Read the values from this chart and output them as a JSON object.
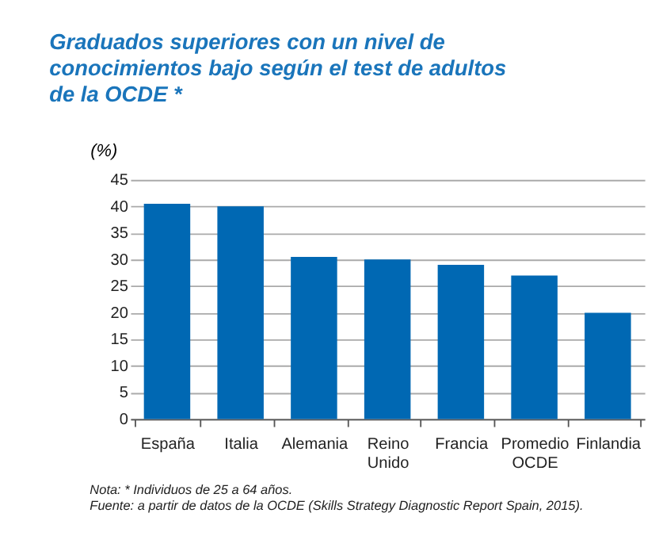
{
  "chart_data": {
    "type": "bar",
    "title": "Graduados superiores con un nivel de conocimientos bajo según el test de adultos de la OCDE *",
    "ylabel": "(%)",
    "categories": [
      "España",
      "Italia",
      "Alemania",
      "Reino Unido",
      "Francia",
      "Promedio OCDE",
      "Finlandia"
    ],
    "values": [
      40.5,
      40,
      30.5,
      30,
      29,
      27,
      20
    ],
    "color": "#0068b3",
    "ylim": [
      0,
      45
    ],
    "yticks": [
      0,
      5,
      10,
      15,
      20,
      25,
      30,
      35,
      40,
      45
    ],
    "grid": "y",
    "annotations": [
      "Nota: * Individuos de 25 a 64 años.",
      "Fuente: a partir de datos de la OCDE (Skills Strategy Diagnostic Report Spain, 2015)."
    ]
  }
}
